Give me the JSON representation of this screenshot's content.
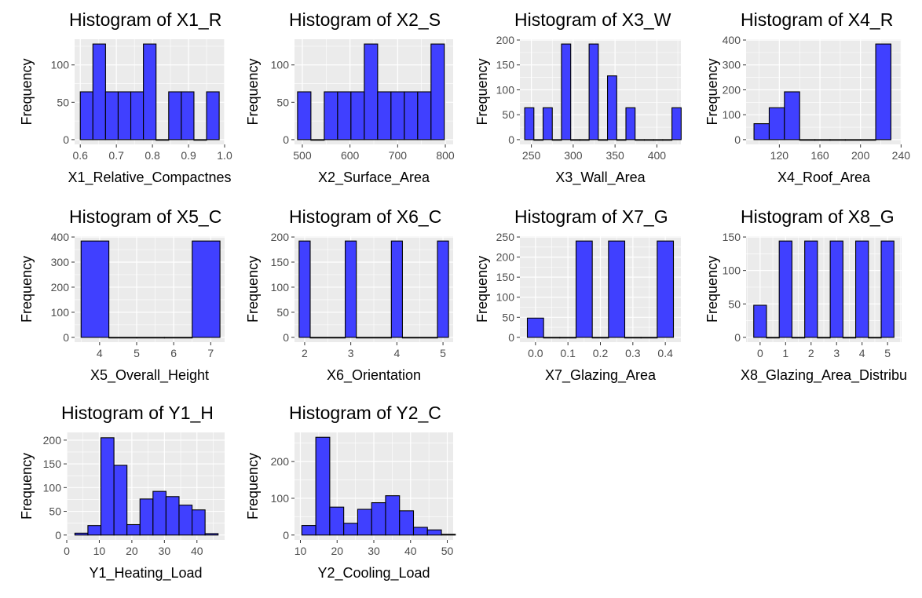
{
  "colors": {
    "panel_background": "#ebebeb",
    "gridline": "#ffffff",
    "bar_fill": "#4040ff",
    "bar_outline": "#000000",
    "tick_text": "#4d4d4d"
  },
  "chart_data": [
    {
      "type": "bar",
      "title": "Histogram of X1_R",
      "xlabel": "X1_Relative_Compactnes",
      "ylabel": "Frequency",
      "xlim": [
        0.5843,
        1.0
      ],
      "ylim": [
        -6.4,
        134.4
      ],
      "xticks": [
        0.6,
        0.7,
        0.8,
        0.9,
        1.0
      ],
      "xtick_labels": [
        "0.6",
        "0.7",
        "0.8",
        "0.9",
        "1.0"
      ],
      "yticks": [
        0,
        50,
        100
      ],
      "bins": [
        {
          "x0": 0.6,
          "x1": 0.635,
          "count": 64
        },
        {
          "x0": 0.635,
          "x1": 0.67,
          "count": 128
        },
        {
          "x0": 0.67,
          "x1": 0.705,
          "count": 64
        },
        {
          "x0": 0.705,
          "x1": 0.74,
          "count": 64
        },
        {
          "x0": 0.74,
          "x1": 0.775,
          "count": 64
        },
        {
          "x0": 0.775,
          "x1": 0.81,
          "count": 128
        },
        {
          "x0": 0.81,
          "x1": 0.845,
          "count": 0
        },
        {
          "x0": 0.845,
          "x1": 0.88,
          "count": 64
        },
        {
          "x0": 0.88,
          "x1": 0.915,
          "count": 64
        },
        {
          "x0": 0.915,
          "x1": 0.95,
          "count": 0
        },
        {
          "x0": 0.95,
          "x1": 0.985,
          "count": 64
        }
      ]
    },
    {
      "type": "bar",
      "title": "Histogram of X2_S",
      "xlabel": "X2_Surface_Area",
      "ylabel": "Frequency",
      "xlim": [
        483.6,
        816.4
      ],
      "ylim": [
        -6.4,
        134.4
      ],
      "xticks": [
        500,
        600,
        700,
        800
      ],
      "xtick_labels": [
        "500",
        "600",
        "700",
        "800"
      ],
      "yticks": [
        0,
        50,
        100
      ],
      "bins": [
        {
          "x0": 490,
          "x1": 518,
          "count": 64
        },
        {
          "x0": 518,
          "x1": 546,
          "count": 0
        },
        {
          "x0": 546,
          "x1": 574,
          "count": 64
        },
        {
          "x0": 574,
          "x1": 602,
          "count": 64
        },
        {
          "x0": 602,
          "x1": 630,
          "count": 64
        },
        {
          "x0": 630,
          "x1": 658,
          "count": 128
        },
        {
          "x0": 658,
          "x1": 686,
          "count": 64
        },
        {
          "x0": 686,
          "x1": 714,
          "count": 64
        },
        {
          "x0": 714,
          "x1": 742,
          "count": 64
        },
        {
          "x0": 742,
          "x1": 770,
          "count": 64
        },
        {
          "x0": 770,
          "x1": 798,
          "count": 128
        }
      ]
    },
    {
      "type": "bar",
      "title": "Histogram of X3_W",
      "xlabel": "X3_Wall_Area",
      "ylabel": "Frequency",
      "xlim": [
        236.3,
        428.7
      ],
      "ylim": [
        -9.6,
        201.6
      ],
      "xticks": [
        250,
        300,
        350,
        400
      ],
      "xtick_labels": [
        "250",
        "300",
        "350",
        "400"
      ],
      "yticks": [
        0,
        50,
        100,
        150,
        200
      ],
      "bins": [
        {
          "x0": 242,
          "x1": 253,
          "count": 64
        },
        {
          "x0": 253,
          "x1": 264,
          "count": 0
        },
        {
          "x0": 264,
          "x1": 275,
          "count": 64
        },
        {
          "x0": 275,
          "x1": 286,
          "count": 0
        },
        {
          "x0": 286,
          "x1": 297,
          "count": 192
        },
        {
          "x0": 297,
          "x1": 308,
          "count": 0
        },
        {
          "x0": 308,
          "x1": 319,
          "count": 0
        },
        {
          "x0": 319,
          "x1": 330,
          "count": 192
        },
        {
          "x0": 330,
          "x1": 341,
          "count": 0
        },
        {
          "x0": 341,
          "x1": 352,
          "count": 128
        },
        {
          "x0": 352,
          "x1": 363,
          "count": 0
        },
        {
          "x0": 363,
          "x1": 374,
          "count": 64
        },
        {
          "x0": 374,
          "x1": 385,
          "count": 0
        },
        {
          "x0": 385,
          "x1": 396,
          "count": 0
        },
        {
          "x0": 396,
          "x1": 407,
          "count": 0
        },
        {
          "x0": 407,
          "x1": 418,
          "count": 0
        },
        {
          "x0": 418,
          "x1": 429,
          "count": 64
        }
      ]
    },
    {
      "type": "bar",
      "title": "Histogram of X4_R",
      "xlabel": "X4_Roof_Area",
      "ylabel": "Frequency",
      "xlim": [
        87.2,
        240.5
      ],
      "ylim": [
        -19.2,
        403.2
      ],
      "xticks": [
        120,
        160,
        200,
        240
      ],
      "xtick_labels": [
        "120",
        "160",
        "200",
        "240"
      ],
      "yticks": [
        0,
        100,
        200,
        300,
        400
      ],
      "bins": [
        {
          "x0": 95,
          "x1": 110,
          "count": 64
        },
        {
          "x0": 110,
          "x1": 125,
          "count": 128
        },
        {
          "x0": 125,
          "x1": 140,
          "count": 192
        },
        {
          "x0": 140,
          "x1": 155,
          "count": 0
        },
        {
          "x0": 155,
          "x1": 170,
          "count": 0
        },
        {
          "x0": 170,
          "x1": 185,
          "count": 0
        },
        {
          "x0": 185,
          "x1": 200,
          "count": 0
        },
        {
          "x0": 200,
          "x1": 215,
          "count": 0
        },
        {
          "x0": 215,
          "x1": 230,
          "count": 384
        }
      ]
    },
    {
      "type": "bar",
      "title": "Histogram of X5_C",
      "xlabel": "X5_Overall_Height",
      "ylabel": "Frequency",
      "xlim": [
        3.325,
        7.375
      ],
      "ylim": [
        -19.2,
        403.2
      ],
      "xticks": [
        4,
        5,
        6,
        7
      ],
      "xtick_labels": [
        "4",
        "5",
        "6",
        "7"
      ],
      "yticks": [
        0,
        100,
        200,
        300,
        400
      ],
      "bins": [
        {
          "x0": 3.5,
          "x1": 4.25,
          "count": 384
        },
        {
          "x0": 4.25,
          "x1": 5.0,
          "count": 0
        },
        {
          "x0": 5.0,
          "x1": 5.75,
          "count": 0
        },
        {
          "x0": 5.75,
          "x1": 6.5,
          "count": 0
        },
        {
          "x0": 6.5,
          "x1": 7.25,
          "count": 384
        }
      ]
    },
    {
      "type": "bar",
      "title": "Histogram of X6_C",
      "xlabel": "X6_Orientation",
      "ylabel": "Frequency",
      "xlim": [
        1.78,
        5.22
      ],
      "ylim": [
        -9.6,
        201.6
      ],
      "xticks": [
        2,
        3,
        4,
        5
      ],
      "xtick_labels": [
        "2",
        "3",
        "4",
        "5"
      ],
      "yticks": [
        0,
        50,
        100,
        150,
        200
      ],
      "bins": [
        {
          "x0": 1.88,
          "x1": 2.12,
          "count": 192
        },
        {
          "x0": 2.12,
          "x1": 2.88,
          "count": 0
        },
        {
          "x0": 2.88,
          "x1": 3.12,
          "count": 192
        },
        {
          "x0": 3.12,
          "x1": 3.88,
          "count": 0
        },
        {
          "x0": 3.88,
          "x1": 4.12,
          "count": 192
        },
        {
          "x0": 4.12,
          "x1": 4.88,
          "count": 0
        },
        {
          "x0": 4.88,
          "x1": 5.12,
          "count": 192
        }
      ]
    },
    {
      "type": "bar",
      "title": "Histogram of X7_G",
      "xlabel": "X7_Glazing_Area",
      "ylabel": "Frequency",
      "xlim": [
        -0.048,
        0.448
      ],
      "ylim": [
        -12,
        252
      ],
      "xticks": [
        0.0,
        0.1,
        0.2,
        0.3,
        0.4
      ],
      "xtick_labels": [
        "0.0",
        "0.1",
        "0.2",
        "0.3",
        "0.4"
      ],
      "yticks": [
        0,
        50,
        100,
        150,
        200,
        250
      ],
      "bins": [
        {
          "x0": -0.025,
          "x1": 0.025,
          "count": 48
        },
        {
          "x0": 0.025,
          "x1": 0.075,
          "count": 0
        },
        {
          "x0": 0.075,
          "x1": 0.125,
          "count": 0
        },
        {
          "x0": 0.125,
          "x1": 0.175,
          "count": 240
        },
        {
          "x0": 0.175,
          "x1": 0.225,
          "count": 0
        },
        {
          "x0": 0.225,
          "x1": 0.275,
          "count": 240
        },
        {
          "x0": 0.275,
          "x1": 0.325,
          "count": 0
        },
        {
          "x0": 0.325,
          "x1": 0.375,
          "count": 0
        },
        {
          "x0": 0.375,
          "x1": 0.425,
          "count": 240
        }
      ]
    },
    {
      "type": "bar",
      "title": "Histogram of X8_G",
      "xlabel": "X8_Glazing_Area_Distribu",
      "ylabel": "Frequency",
      "xlim": [
        -0.55,
        5.55
      ],
      "ylim": [
        -7.2,
        151.2
      ],
      "xticks": [
        0,
        1,
        2,
        3,
        4,
        5
      ],
      "xtick_labels": [
        "0",
        "1",
        "2",
        "3",
        "4",
        "5"
      ],
      "yticks": [
        0,
        50,
        100,
        150
      ],
      "bins": [
        {
          "x0": -0.25,
          "x1": 0.25,
          "count": 48
        },
        {
          "x0": 0.25,
          "x1": 0.75,
          "count": 0
        },
        {
          "x0": 0.75,
          "x1": 1.25,
          "count": 144
        },
        {
          "x0": 1.25,
          "x1": 1.75,
          "count": 0
        },
        {
          "x0": 1.75,
          "x1": 2.25,
          "count": 144
        },
        {
          "x0": 2.25,
          "x1": 2.75,
          "count": 0
        },
        {
          "x0": 2.75,
          "x1": 3.25,
          "count": 144
        },
        {
          "x0": 3.25,
          "x1": 3.75,
          "count": 0
        },
        {
          "x0": 3.75,
          "x1": 4.25,
          "count": 144
        },
        {
          "x0": 4.25,
          "x1": 4.75,
          "count": 0
        },
        {
          "x0": 4.75,
          "x1": 5.25,
          "count": 144
        }
      ]
    },
    {
      "type": "bar",
      "title": "Histogram of Y1_H",
      "xlabel": "Y1_Heating_Load",
      "ylabel": "Frequency",
      "xlim": [
        0,
        48.5
      ],
      "ylim": [
        -10.3,
        216.3
      ],
      "xticks": [
        0,
        10,
        20,
        30,
        40
      ],
      "xtick_labels": [
        "0",
        "10",
        "20",
        "30",
        "40"
      ],
      "yticks": [
        0,
        50,
        100,
        150,
        200
      ],
      "bins": [
        {
          "x0": 2.5,
          "x1": 6.5,
          "count": 4
        },
        {
          "x0": 6.5,
          "x1": 10.5,
          "count": 20
        },
        {
          "x0": 10.5,
          "x1": 14.5,
          "count": 205
        },
        {
          "x0": 14.5,
          "x1": 18.5,
          "count": 147
        },
        {
          "x0": 18.5,
          "x1": 22.5,
          "count": 22
        },
        {
          "x0": 22.5,
          "x1": 26.5,
          "count": 76
        },
        {
          "x0": 26.5,
          "x1": 30.5,
          "count": 92
        },
        {
          "x0": 30.5,
          "x1": 34.5,
          "count": 81
        },
        {
          "x0": 34.5,
          "x1": 38.5,
          "count": 63
        },
        {
          "x0": 38.5,
          "x1": 42.5,
          "count": 53
        },
        {
          "x0": 42.5,
          "x1": 46.5,
          "count": 3
        }
      ]
    },
    {
      "type": "bar",
      "title": "Histogram of Y2_C",
      "xlabel": "Y2_Cooling_Load",
      "ylabel": "Frequency",
      "xlim": [
        8.4,
        51.6
      ],
      "ylim": [
        -13.3,
        279.3
      ],
      "xticks": [
        10,
        20,
        30,
        40,
        50
      ],
      "xtick_labels": [
        "10",
        "20",
        "30",
        "40",
        "50"
      ],
      "yticks": [
        0,
        100,
        200
      ],
      "bins": [
        {
          "x0": 10.4,
          "x1": 14.2,
          "count": 26
        },
        {
          "x0": 14.2,
          "x1": 18.0,
          "count": 266
        },
        {
          "x0": 18.0,
          "x1": 21.8,
          "count": 76
        },
        {
          "x0": 21.8,
          "x1": 25.6,
          "count": 32
        },
        {
          "x0": 25.6,
          "x1": 29.4,
          "count": 70
        },
        {
          "x0": 29.4,
          "x1": 33.2,
          "count": 88
        },
        {
          "x0": 33.2,
          "x1": 37.0,
          "count": 107
        },
        {
          "x0": 37.0,
          "x1": 40.8,
          "count": 66
        },
        {
          "x0": 40.8,
          "x1": 44.6,
          "count": 21
        },
        {
          "x0": 44.6,
          "x1": 48.4,
          "count": 14
        },
        {
          "x0": 48.4,
          "x1": 52.2,
          "count": 2
        }
      ]
    }
  ]
}
